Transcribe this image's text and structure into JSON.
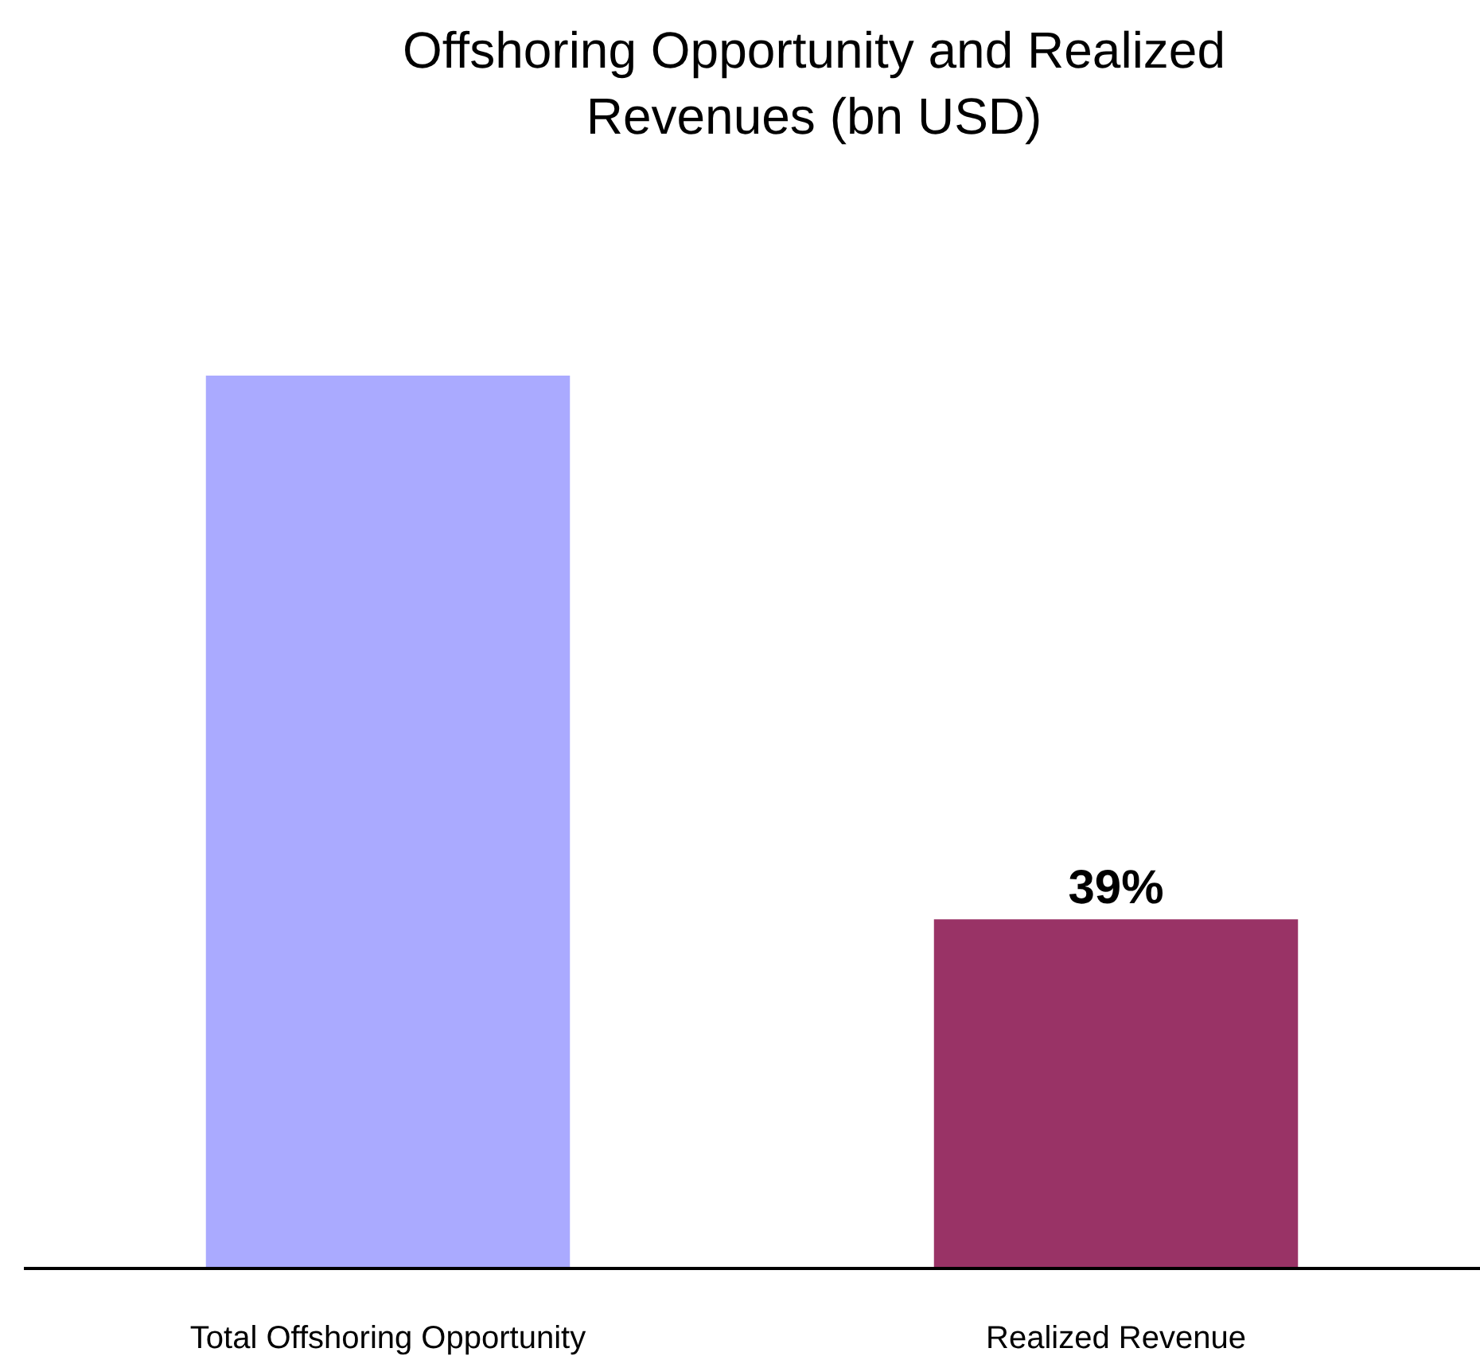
{
  "chart_data": {
    "type": "bar",
    "title": "Offshoring Opportunity and Realized\nRevenues (bn USD)",
    "categories": [
      "Total Offshoring Opportunity",
      "Realized Revenue"
    ],
    "values": [
      100,
      39
    ],
    "colors": [
      "#aaaaff",
      "#993366"
    ],
    "value_labels": [
      null,
      "39%"
    ],
    "ylim": [
      0,
      100
    ],
    "tick_labels": "x",
    "legend": false
  }
}
